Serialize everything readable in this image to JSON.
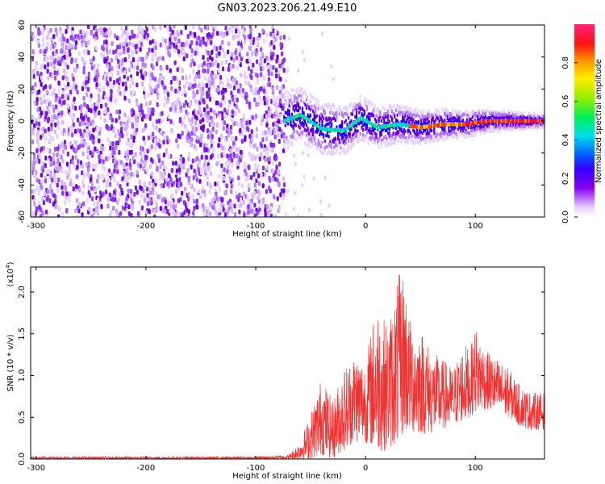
{
  "title": "GN03.2023.206.21.49.E10",
  "chart_data": [
    {
      "type": "heatmap",
      "title": "GN03.2023.206.21.49.E10",
      "xlabel": "Height of straight line (km)",
      "ylabel": "Frequency (Hz)",
      "xlim": [
        -305,
        163
      ],
      "ylim": [
        -60,
        60
      ],
      "x_ticks": [
        -300,
        -200,
        -100,
        0,
        100
      ],
      "y_ticks": [
        -60,
        -40,
        -20,
        0,
        20,
        40,
        60
      ],
      "colorbar": {
        "label": "Normalized spectral amplitude",
        "range": [
          0.0,
          1.0
        ],
        "ticks": [
          "0.0",
          "0.2",
          "0.4",
          "0.6",
          "0.8"
        ],
        "colormap": "rainbow (violet to red)"
      },
      "description_data": {
        "noise_region_x": [
          -305,
          -75
        ],
        "signal_region_x": [
          -75,
          163
        ],
        "ridge_frequency_trace": [
          {
            "x": -75,
            "y": 0
          },
          {
            "x": -60,
            "y": 4
          },
          {
            "x": -40,
            "y": -5
          },
          {
            "x": -20,
            "y": -6
          },
          {
            "x": -5,
            "y": 2
          },
          {
            "x": 10,
            "y": -4
          },
          {
            "x": 30,
            "y": -2
          },
          {
            "x": 50,
            "y": -4
          },
          {
            "x": 70,
            "y": -2
          },
          {
            "x": 90,
            "y": -2
          },
          {
            "x": 110,
            "y": 0
          },
          {
            "x": 163,
            "y": 0
          }
        ]
      }
    },
    {
      "type": "line",
      "xlabel": "Height of straight line (km)",
      "ylabel": "SNR (10 * v/v)",
      "scale_label": "(x10",
      "scale_exp": "4",
      "scale_close": ")",
      "xlim": [
        -305,
        163
      ],
      "ylim": [
        0,
        2.3
      ],
      "x_ticks": [
        -300,
        -200,
        -100,
        0,
        100
      ],
      "y_ticks": [
        "0.0",
        "0.5",
        "1.0",
        "1.5",
        "2.0"
      ],
      "color": "#ee3333",
      "envelope": [
        {
          "x": -305,
          "lo": 0.0,
          "hi": 0.03
        },
        {
          "x": -100,
          "lo": 0.0,
          "hi": 0.03
        },
        {
          "x": -70,
          "lo": 0.0,
          "hi": 0.05
        },
        {
          "x": -60,
          "lo": 0.0,
          "hi": 0.2
        },
        {
          "x": -50,
          "lo": 0.0,
          "hi": 0.55
        },
        {
          "x": -40,
          "lo": 0.05,
          "hi": 1.0
        },
        {
          "x": -30,
          "lo": 0.0,
          "hi": 0.7
        },
        {
          "x": -20,
          "lo": 0.1,
          "hi": 1.1
        },
        {
          "x": -10,
          "lo": 0.2,
          "hi": 1.3
        },
        {
          "x": 0,
          "lo": 0.2,
          "hi": 1.2
        },
        {
          "x": 10,
          "lo": 0.1,
          "hi": 1.9
        },
        {
          "x": 20,
          "lo": 0.1,
          "hi": 1.6
        },
        {
          "x": 30,
          "lo": 0.2,
          "hi": 2.2
        },
        {
          "x": 35,
          "lo": 0.3,
          "hi": 2.3
        },
        {
          "x": 40,
          "lo": 0.3,
          "hi": 1.7
        },
        {
          "x": 50,
          "lo": 0.3,
          "hi": 1.6
        },
        {
          "x": 60,
          "lo": 0.3,
          "hi": 1.3
        },
        {
          "x": 70,
          "lo": 0.35,
          "hi": 1.2
        },
        {
          "x": 80,
          "lo": 0.4,
          "hi": 1.1
        },
        {
          "x": 90,
          "lo": 0.45,
          "hi": 1.4
        },
        {
          "x": 95,
          "lo": 0.5,
          "hi": 1.3
        },
        {
          "x": 100,
          "lo": 0.55,
          "hi": 1.6
        },
        {
          "x": 110,
          "lo": 0.6,
          "hi": 1.3
        },
        {
          "x": 120,
          "lo": 0.55,
          "hi": 1.2
        },
        {
          "x": 130,
          "lo": 0.5,
          "hi": 1.1
        },
        {
          "x": 140,
          "lo": 0.4,
          "hi": 0.9
        },
        {
          "x": 150,
          "lo": 0.35,
          "hi": 0.8
        },
        {
          "x": 163,
          "lo": 0.35,
          "hi": 0.8
        }
      ]
    }
  ]
}
